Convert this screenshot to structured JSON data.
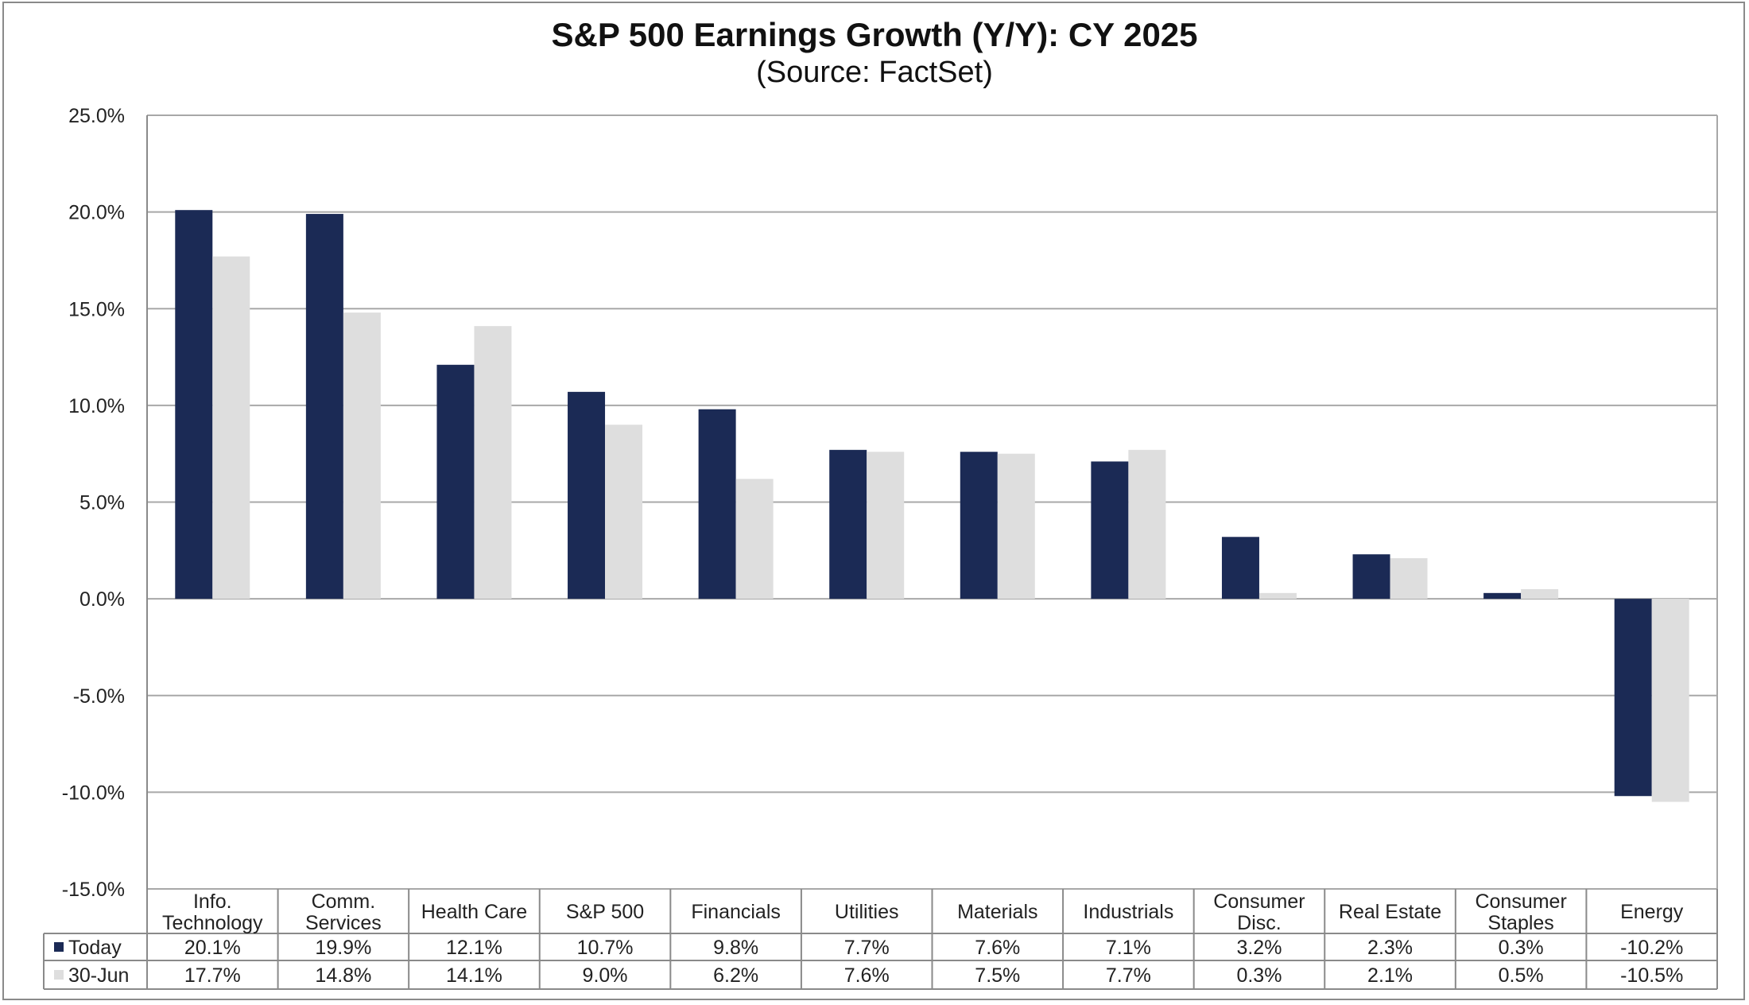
{
  "chart_data": {
    "type": "bar",
    "title": "S&P 500 Earnings Growth (Y/Y): CY 2025",
    "subtitle": "(Source: FactSet)",
    "categories": [
      [
        "Info.",
        "Technology"
      ],
      [
        "Comm.",
        "Services"
      ],
      [
        "Health Care"
      ],
      [
        "S&P 500"
      ],
      [
        "Financials"
      ],
      [
        "Utilities"
      ],
      [
        "Materials"
      ],
      [
        "Industrials"
      ],
      [
        "Consumer",
        "Disc."
      ],
      [
        "Real Estate"
      ],
      [
        "Consumer",
        "Staples"
      ],
      [
        "Energy"
      ]
    ],
    "series": [
      {
        "name": "Today",
        "color": "#1b2a55",
        "values": [
          20.1,
          19.9,
          12.1,
          10.7,
          9.8,
          7.7,
          7.6,
          7.1,
          3.2,
          2.3,
          0.3,
          -10.2
        ],
        "labels": [
          "20.1%",
          "19.9%",
          "12.1%",
          "10.7%",
          "9.8%",
          "7.7%",
          "7.6%",
          "7.1%",
          "3.2%",
          "2.3%",
          "0.3%",
          "-10.2%"
        ]
      },
      {
        "name": "30-Jun",
        "color": "#dedede",
        "values": [
          17.7,
          14.8,
          14.1,
          9.0,
          6.2,
          7.6,
          7.5,
          7.7,
          0.3,
          2.1,
          0.5,
          -10.5
        ],
        "labels": [
          "17.7%",
          "14.8%",
          "14.1%",
          "9.0%",
          "6.2%",
          "7.6%",
          "7.5%",
          "7.7%",
          "0.3%",
          "2.1%",
          "0.5%",
          "-10.5%"
        ]
      }
    ],
    "ylim": [
      -15,
      25
    ],
    "yticks": [
      25,
      20,
      15,
      10,
      5,
      0,
      -5,
      -10,
      -15
    ],
    "ytick_labels": [
      "25.0%",
      "20.0%",
      "15.0%",
      "10.0%",
      "5.0%",
      "0.0%",
      "-5.0%",
      "-10.0%",
      "-15.0%"
    ],
    "grid": true,
    "legend": "data-table"
  }
}
